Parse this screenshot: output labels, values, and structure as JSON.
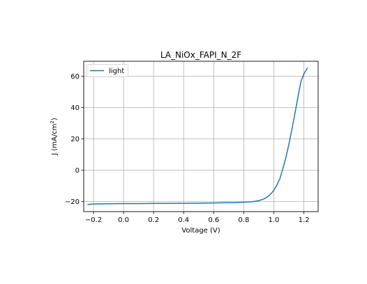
{
  "chart_data": {
    "type": "line",
    "title": "LA_NiOx_FAPI_N_2F",
    "xlabel": "Voltage (V)",
    "ylabel_main": "J (mA/cm",
    "ylabel_sup": "2",
    "ylabel_end": ")",
    "xlim": [
      -0.265,
      1.295
    ],
    "ylim": [
      -26.4,
      69.6
    ],
    "xticks": [
      -0.2,
      0.0,
      0.2,
      0.4,
      0.6,
      0.8,
      1.0,
      1.2
    ],
    "xtick_labels": [
      "−0.2",
      "0.0",
      "0.2",
      "0.4",
      "0.6",
      "0.8",
      "1.0",
      "1.2"
    ],
    "yticks": [
      -20,
      0,
      20,
      40,
      60
    ],
    "ytick_labels": [
      "−20",
      "0",
      "20",
      "40",
      "60"
    ],
    "grid": true,
    "legend_position": "upper-left",
    "colors": {
      "light": "#1f77b4"
    },
    "series": [
      {
        "name": "light",
        "x": [
          -0.24,
          -0.2,
          -0.1,
          0.0,
          0.1,
          0.2,
          0.3,
          0.4,
          0.5,
          0.6,
          0.7,
          0.75,
          0.8,
          0.85,
          0.9,
          0.93,
          0.95,
          0.97,
          0.99,
          1.0,
          1.02,
          1.04,
          1.06,
          1.08,
          1.1,
          1.12,
          1.14,
          1.16,
          1.18,
          1.2,
          1.225
        ],
        "y": [
          -21.9,
          -21.5,
          -21.4,
          -21.3,
          -21.3,
          -21.2,
          -21.2,
          -21.1,
          -21.0,
          -20.9,
          -20.7,
          -20.6,
          -20.4,
          -20.2,
          -19.4,
          -18.5,
          -17.5,
          -16.0,
          -14.0,
          -12.8,
          -9.5,
          -5.5,
          1.0,
          8.0,
          16.5,
          26.0,
          36.0,
          46.5,
          56.5,
          61.5,
          65.5
        ]
      }
    ]
  }
}
